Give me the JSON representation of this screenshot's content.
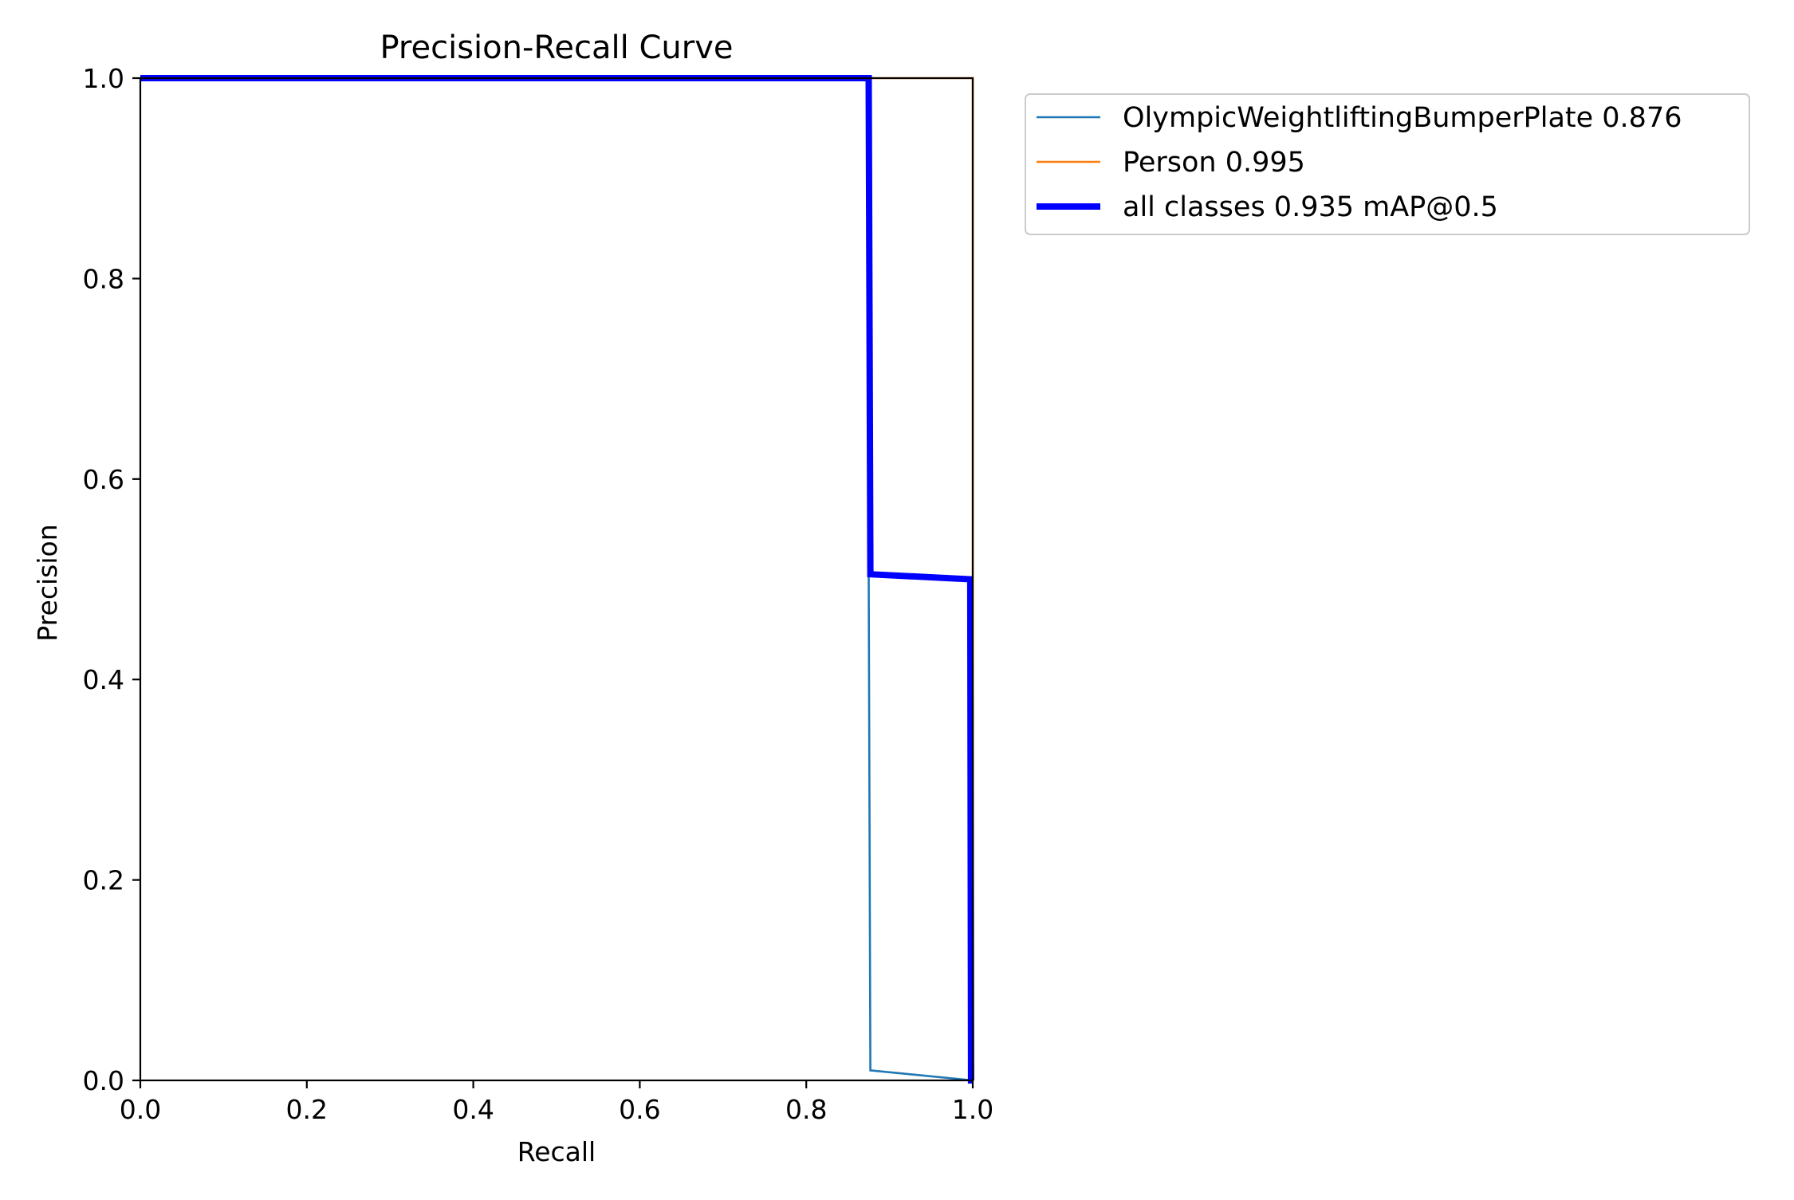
{
  "chart_data": {
    "type": "line",
    "title": "Precision-Recall Curve",
    "xlabel": "Recall",
    "ylabel": "Precision",
    "xlim": [
      0,
      1
    ],
    "ylim": [
      0,
      1
    ],
    "x_ticks": [
      0.0,
      0.2,
      0.4,
      0.6,
      0.8,
      1.0
    ],
    "y_ticks": [
      0.0,
      0.2,
      0.4,
      0.6,
      0.8,
      1.0
    ],
    "x_tick_labels": [
      "0.0",
      "0.2",
      "0.4",
      "0.6",
      "0.8",
      "1.0"
    ],
    "y_tick_labels": [
      "0.0",
      "0.2",
      "0.4",
      "0.6",
      "0.8",
      "1.0"
    ],
    "grid": false,
    "legend_position": "outside-top-right",
    "series": [
      {
        "name": "OlympicWeightliftingBumperPlate 0.876",
        "color": "#1f77b4",
        "line": "thin",
        "x": [
          0.0,
          0.875,
          0.875,
          0.877,
          1.0,
          1.0
        ],
        "y": [
          1.0,
          1.0,
          0.505,
          0.01,
          0.0,
          0.0
        ]
      },
      {
        "name": "Person 0.995",
        "color": "#ff7f0e",
        "line": "thin",
        "x": [
          0.0,
          1.0,
          1.0
        ],
        "y": [
          1.0,
          1.0,
          0.0
        ]
      },
      {
        "name": "all classes 0.935 mAP@0.5",
        "color": "#0000ff",
        "line": "thick",
        "x": [
          0.0,
          0.875,
          0.877,
          0.997,
          0.998,
          1.0
        ],
        "y": [
          1.0,
          1.0,
          0.505,
          0.5,
          0.0,
          0.0
        ]
      }
    ]
  }
}
